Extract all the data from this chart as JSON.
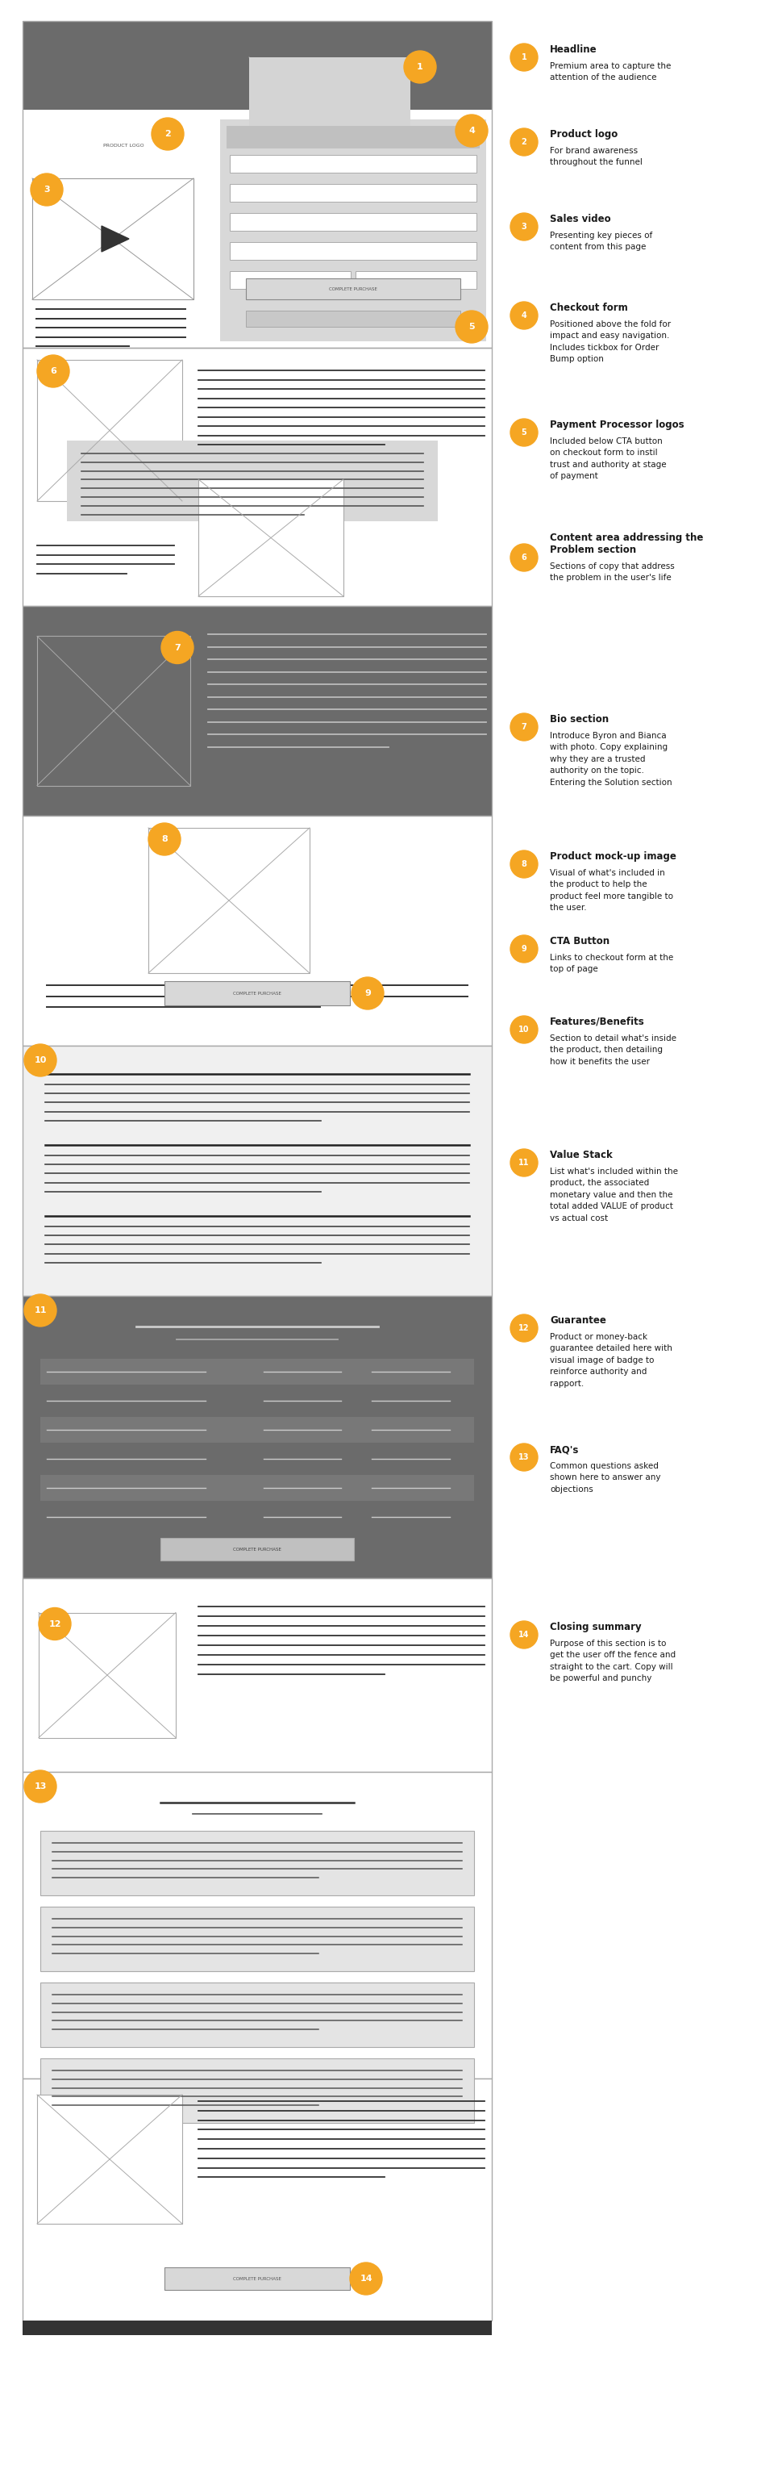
{
  "bg_color": "#ffffff",
  "dark_bg": "#6b6b6b",
  "light_gray_bg": "#e8e8e8",
  "wire_border": "#aaaaaa",
  "annotation_color": "#F5A623",
  "text_dark": "#1a1a1a",
  "annotations": [
    {
      "num": 1,
      "title": "Headline",
      "desc": "Premium area to capture the\nattention of the audience"
    },
    {
      "num": 2,
      "title": "Product logo",
      "desc": "For brand awareness\nthroughout the funnel"
    },
    {
      "num": 3,
      "title": "Sales video",
      "desc": "Presenting key pieces of\ncontent from this page"
    },
    {
      "num": 4,
      "title": "Checkout form",
      "desc": "Positioned above the fold for\nimpact and easy navigation.\nIncludes tickbox for Order\nBump option"
    },
    {
      "num": 5,
      "title": "Payment Processor logos",
      "desc": "Included below CTA button\non checkout form to instil\ntrust and authority at stage\nof payment"
    },
    {
      "num": 6,
      "title": "Content area addressing the\nProblem section",
      "desc": "Sections of copy that address\nthe problem in the user's life"
    },
    {
      "num": 7,
      "title": "Bio section",
      "desc": "Introduce Byron and Bianca\nwith photo. Copy explaining\nwhy they are a trusted\nauthority on the topic.\nEntering the Solution section"
    },
    {
      "num": 8,
      "title": "Product mock-up image",
      "desc": "Visual of what's included in\nthe product to help the\nproduct feel more tangible to\nthe user."
    },
    {
      "num": 9,
      "title": "CTA Button",
      "desc": "Links to checkout form at the\ntop of page"
    },
    {
      "num": 10,
      "title": "Features/Benefits",
      "desc": "Section to detail what's inside\nthe product, then detailing\nhow it benefits the user"
    },
    {
      "num": 11,
      "title": "Value Stack",
      "desc": "List what's included within the\nproduct, the associated\nmonetary value and then the\ntotal added VALUE of product\nvs actual cost"
    },
    {
      "num": 12,
      "title": "Guarantee",
      "desc": "Product or money-back\nguarantee detailed here with\nvisual image of badge to\nreinforce authority and\nrapport."
    },
    {
      "num": 13,
      "title": "FAQ's",
      "desc": "Common questions asked\nshown here to answer any\nobjections"
    },
    {
      "num": 14,
      "title": "Closing summary",
      "desc": "Purpose of this section is to\nget the user off the fence and\nstraight to the cart. Copy will\nbe powerful and punchy"
    }
  ]
}
